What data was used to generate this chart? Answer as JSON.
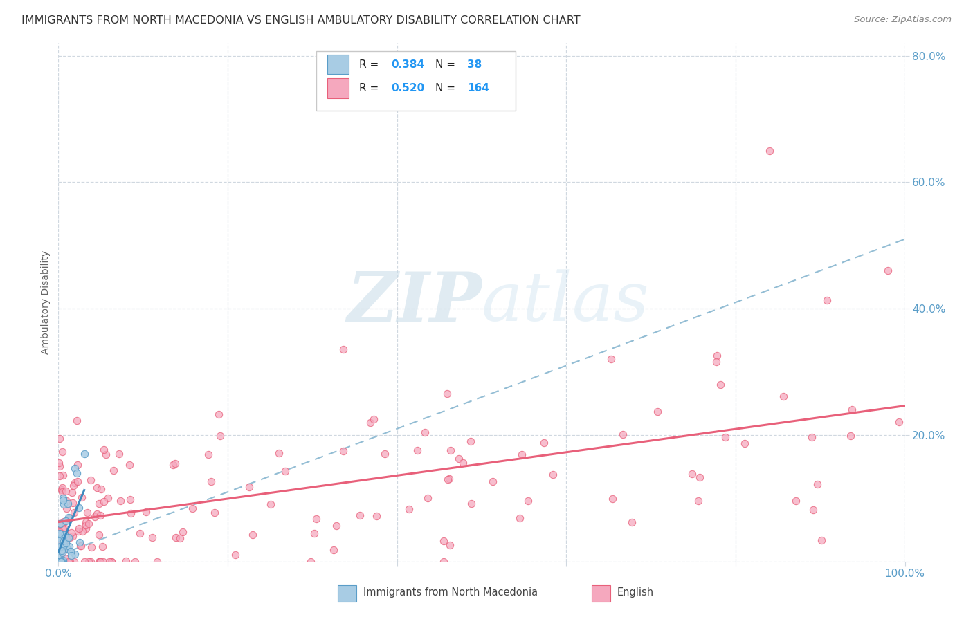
{
  "title": "IMMIGRANTS FROM NORTH MACEDONIA VS ENGLISH AMBULATORY DISABILITY CORRELATION CHART",
  "source": "Source: ZipAtlas.com",
  "ylabel": "Ambulatory Disability",
  "watermark_zip": "ZIP",
  "watermark_atlas": "atlas",
  "legend_r1": "0.384",
  "legend_n1": "38",
  "legend_r2": "0.520",
  "legend_n2": "164",
  "color_blue": "#a8cce4",
  "color_blue_edge": "#5a9dc8",
  "color_blue_line": "#3d8abf",
  "color_pink": "#f5a8be",
  "color_pink_edge": "#e8607a",
  "color_pink_line": "#e8607a",
  "color_dashed": "#93bdd4",
  "background": "#ffffff",
  "grid_color": "#d0d8e0",
  "ytick_color": "#5a9dc8",
  "xtick_color": "#5a9dc8",
  "title_color": "#333333",
  "source_color": "#888888",
  "ylabel_color": "#666666"
}
